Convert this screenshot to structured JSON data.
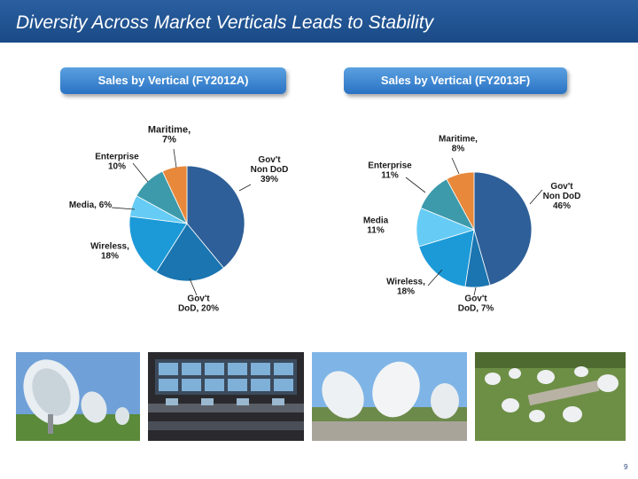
{
  "slide": {
    "title": "Diversity Across Market Verticals Leads to Stability",
    "page_number": "9"
  },
  "colors": {
    "title_bar": "#1f5595",
    "govt_non_dod": "#2e5f98",
    "govt_dod": "#1a75b0",
    "wireless": "#1c9ad8",
    "media": "#66ccf5",
    "enterprise": "#3c9aab",
    "maritime": "#e8883a"
  },
  "photos": [
    {
      "icon": "satellite-dish-field-photo"
    },
    {
      "icon": "network-operations-center-photo"
    },
    {
      "icon": "teleport-dishes-photo"
    },
    {
      "icon": "teleport-aerial-photo"
    }
  ],
  "chart_data": [
    {
      "type": "pie",
      "title": "Sales by Vertical (FY2012A)",
      "categories": [
        "Gov't Non DoD",
        "Gov't DoD",
        "Wireless",
        "Media",
        "Enterprise",
        "Maritime"
      ],
      "values": [
        39,
        20,
        18,
        6,
        10,
        7
      ],
      "labels": [
        "Gov't\nNon DoD\n39%",
        "Gov't\nDoD, 20%",
        "Wireless,\n18%",
        "Media, 6%",
        "Enterprise\n10%",
        "Maritime,\n7%"
      ]
    },
    {
      "type": "pie",
      "title": "Sales by Vertical (FY2013F)",
      "categories": [
        "Gov't Non DoD",
        "Gov't DoD",
        "Wireless",
        "Media",
        "Enterprise",
        "Maritime"
      ],
      "values": [
        46,
        7,
        18,
        11,
        11,
        8
      ],
      "labels": [
        "Gov't\nNon DoD\n46%",
        "Gov't\nDoD, 7%",
        "Wireless,\n18%",
        "Media\n11%",
        "Enterprise\n11%",
        "Maritime,\n8%"
      ]
    }
  ]
}
